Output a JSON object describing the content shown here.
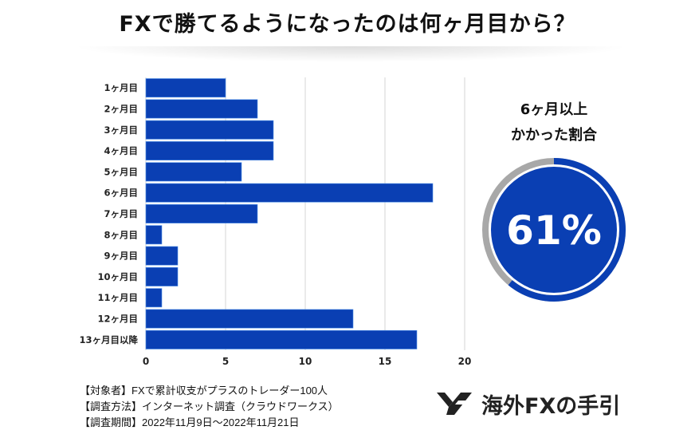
{
  "title": "FXで勝てるようになったのは何ヶ月目から？",
  "chart_data": [
    {
      "type": "bar",
      "orientation": "horizontal",
      "categories": [
        "1ヶ月目",
        "2ヶ月目",
        "3ヶ月目",
        "4ヶ月目",
        "5ヶ月目",
        "6ヶ月目",
        "7ヶ月目",
        "8ヶ月目",
        "9ヶ月目",
        "10ヶ月目",
        "11ヶ月目",
        "12ヶ月目",
        "13ヶ月目以降"
      ],
      "values": [
        5,
        7,
        8,
        8,
        6,
        18,
        7,
        1,
        2,
        2,
        1,
        13,
        17
      ],
      "xlim": [
        0,
        20
      ],
      "xticks": [
        "0",
        "5",
        "10",
        "15",
        "20"
      ],
      "grid": "vertical",
      "bar_color": "#0a3fb3"
    },
    {
      "type": "pie",
      "style": "donut",
      "title": "6ヶ月以上\nかかった割合",
      "title_lines": [
        "6ヶ月以上",
        "かかった割合"
      ],
      "value": 61,
      "label": "61%",
      "colors": {
        "value": "#0a3fb3",
        "remainder": "#a8a8a8"
      }
    }
  ],
  "notes": [
    "【対象者】FXで累計収支がプラスのトレーダー100人",
    "【調査方法】インターネット調査（クラウドワークス）",
    "【調査期間】2022年11月9日〜2022年11月21日"
  ],
  "logo": {
    "text": "海外FXの手引",
    "icon": "fx-logo-mark-icon"
  }
}
